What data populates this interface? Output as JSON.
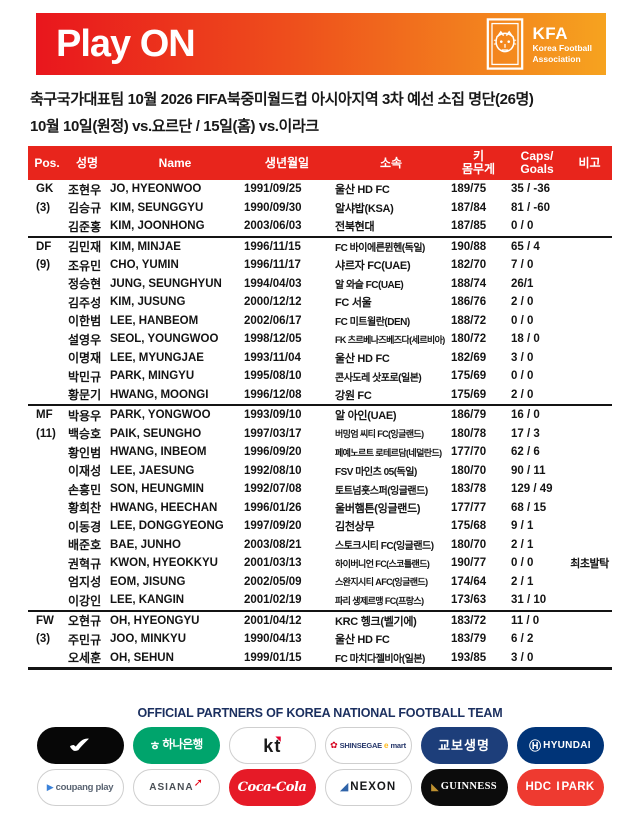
{
  "colors": {
    "banner_gradient_left": "#e9161d",
    "banner_gradient_right": "#f6a31f",
    "table_header_red": "#e8251c",
    "footer_navy": "#1b2f5f"
  },
  "banner": {
    "title": "Play ON",
    "kfa": {
      "acronym": "KFA",
      "org_line1": "Korea Football",
      "org_line2": "Association"
    }
  },
  "intro": {
    "line1": "축구국가대표팀 10월 2026 FIFA북중미월드컵 아시아지역 3차 예선 소집 명단(26명)",
    "line2": "10월 10일(원정) vs.요르단 / 15일(홈) vs.이라크"
  },
  "table": {
    "headers": {
      "pos": "Pos.",
      "kor": "성명",
      "name": "Name",
      "birth": "생년월일",
      "club": "소속",
      "hw1": "키",
      "hw2": "몸무게",
      "caps1": "Caps/",
      "caps2": "Goals",
      "remark": "비고"
    },
    "sections": [
      {
        "pos": "GK",
        "count": "(3)",
        "players": [
          {
            "kor": "조현우",
            "name": "JO, HYEONWOO",
            "birth": "1991/09/25",
            "club": "울산 HD FC",
            "hw": "189/75",
            "caps": "35 / -36",
            "remark": ""
          },
          {
            "kor": "김승규",
            "name": "KIM, SEUNGGYU",
            "birth": "1990/09/30",
            "club": "알샤밥(KSA)",
            "hw": "187/84",
            "caps": "81 / -60",
            "remark": ""
          },
          {
            "kor": "김준홍",
            "name": "KIM, JOONHONG",
            "birth": "2003/06/03",
            "club": "전북현대",
            "hw": "187/85",
            "caps": "0 / 0",
            "remark": ""
          }
        ]
      },
      {
        "pos": "DF",
        "count": "(9)",
        "players": [
          {
            "kor": "김민재",
            "name": "KIM, MINJAE",
            "birth": "1996/11/15",
            "club": "FC 바이에른뮌헨(독일)",
            "hw": "190/88",
            "caps": "65 / 4",
            "remark": ""
          },
          {
            "kor": "조유민",
            "name": "CHO, YUMIN",
            "birth": "1996/11/17",
            "club": "샤르자 FC(UAE)",
            "hw": "182/70",
            "caps": "7 / 0",
            "remark": ""
          },
          {
            "kor": "정승현",
            "name": "JUNG, SEUNGHYUN",
            "birth": "1994/04/03",
            "club": "알 와슬 FC(UAE)",
            "hw": "188/74",
            "caps": "26/1",
            "remark": ""
          },
          {
            "kor": "김주성",
            "name": "KIM, JUSUNG",
            "birth": "2000/12/12",
            "club": "FC 서울",
            "hw": "186/76",
            "caps": "2 / 0",
            "remark": ""
          },
          {
            "kor": "이한범",
            "name": "LEE, HANBEOM",
            "birth": "2002/06/17",
            "club": "FC 미트윌란(DEN)",
            "hw": "188/72",
            "caps": "0 / 0",
            "remark": ""
          },
          {
            "kor": "설영우",
            "name": "SEOL, YOUNGWOO",
            "birth": "1998/12/05",
            "club": "FK 츠르베나즈베즈다(세르비아)",
            "hw": "180/72",
            "caps": "18 / 0",
            "remark": ""
          },
          {
            "kor": "이명재",
            "name": "LEE, MYUNGJAE",
            "birth": "1993/11/04",
            "club": "울산 HD FC",
            "hw": "182/69",
            "caps": "3 / 0",
            "remark": ""
          },
          {
            "kor": "박민규",
            "name": "PARK, MINGYU",
            "birth": "1995/08/10",
            "club": "콘사도레 삿포로(일본)",
            "hw": "175/69",
            "caps": "0 / 0",
            "remark": ""
          },
          {
            "kor": "황문기",
            "name": "HWANG, MOONGI",
            "birth": "1996/12/08",
            "club": "강원 FC",
            "hw": "175/69",
            "caps": "2 / 0",
            "remark": ""
          }
        ]
      },
      {
        "pos": "MF",
        "count": "(11)",
        "players": [
          {
            "kor": "박용우",
            "name": "PARK, YONGWOO",
            "birth": "1993/09/10",
            "club": "알 아인(UAE)",
            "hw": "186/79",
            "caps": "16 / 0",
            "remark": ""
          },
          {
            "kor": "백승호",
            "name": "PAIK, SEUNGHO",
            "birth": "1997/03/17",
            "club": "버밍엄 씨티 FC(잉글랜드)",
            "hw": "180/78",
            "caps": "17 / 3",
            "remark": ""
          },
          {
            "kor": "황인범",
            "name": "HWANG, INBEOM",
            "birth": "1996/09/20",
            "club": "페예노르트 로테르담(네덜란드)",
            "hw": "177/70",
            "caps": "62 / 6",
            "remark": ""
          },
          {
            "kor": "이재성",
            "name": "LEE, JAESUNG",
            "birth": "1992/08/10",
            "club": "FSV 마인츠 05(독일)",
            "hw": "180/70",
            "caps": "90 / 11",
            "remark": ""
          },
          {
            "kor": "손흥민",
            "name": "SON, HEUNGMIN",
            "birth": "1992/07/08",
            "club": "토트넘홋스퍼(잉글랜드)",
            "hw": "183/78",
            "caps": "129 / 49",
            "remark": ""
          },
          {
            "kor": "황희찬",
            "name": "HWANG, HEECHAN",
            "birth": "1996/01/26",
            "club": "울버햄튼(잉글랜드)",
            "hw": "177/77",
            "caps": "68 / 15",
            "remark": ""
          },
          {
            "kor": "이동경",
            "name": "LEE, DONGGYEONG",
            "birth": "1997/09/20",
            "club": "김천상무",
            "hw": "175/68",
            "caps": "9 / 1",
            "remark": ""
          },
          {
            "kor": "배준호",
            "name": "BAE, JUNHO",
            "birth": "2003/08/21",
            "club": "스토크시티 FC(잉글랜드)",
            "hw": "180/70",
            "caps": "2 / 1",
            "remark": ""
          },
          {
            "kor": "권혁규",
            "name": "KWON, HYEOKKYU",
            "birth": "2001/03/13",
            "club": "하이버니언 FC(스코틀랜드)",
            "hw": "190/77",
            "caps": "0 / 0",
            "remark": "최초발탁"
          },
          {
            "kor": "엄지성",
            "name": "EOM, JISUNG",
            "birth": "2002/05/09",
            "club": "스완지시티 AFC(잉글랜드)",
            "hw": "174/64",
            "caps": "2 / 1",
            "remark": ""
          },
          {
            "kor": "이강인",
            "name": "LEE, KANGIN",
            "birth": "2001/02/19",
            "club": "파리 생제르맹 FC(프랑스)",
            "hw": "173/63",
            "caps": "31 / 10",
            "remark": ""
          }
        ]
      },
      {
        "pos": "FW",
        "count": "(3)",
        "players": [
          {
            "kor": "오현규",
            "name": "OH, HYEONGYU",
            "birth": "2001/04/12",
            "club": "KRC 헹크(벨기에)",
            "hw": "183/72",
            "caps": "11 / 0",
            "remark": ""
          },
          {
            "kor": "주민규",
            "name": "JOO, MINKYU",
            "birth": "1990/04/13",
            "club": "울산 HD FC",
            "hw": "183/79",
            "caps": "6 / 2",
            "remark": ""
          },
          {
            "kor": "오세훈",
            "name": "OH, SEHUN",
            "birth": "1999/01/15",
            "club": "FC 마치다젤비아(일본)",
            "hw": "193/85",
            "caps": "3 / 0",
            "remark": ""
          }
        ]
      }
    ]
  },
  "footer": {
    "title": "OFFICIAL PARTNERS OF KOREA NATIONAL FOOTBALL TEAM",
    "partners": [
      {
        "name": "nike",
        "bg": "#070707",
        "border": false,
        "parts": [
          {
            "text": "✔",
            "color": "#ffffff",
            "cls": "swoosh",
            "dn": "nike-swoosh-icon"
          }
        ]
      },
      {
        "name": "hana-bank",
        "bg": "#00a46c",
        "border": false,
        "parts": [
          {
            "text": "ㅎ",
            "color": "#ffffff",
            "cls": "hana-sym",
            "dn": "hana-symbol-icon"
          },
          {
            "text": "하나은행",
            "color": "#ffffff",
            "cls": "hana-txt",
            "dn": "hana-bank-label"
          }
        ]
      },
      {
        "name": "kt",
        "bg": "#ffffff",
        "border": true,
        "parts": [
          {
            "text": "k",
            "color": "#1a1a1a",
            "cls": "kt-txt",
            "dn": "kt-label-k"
          },
          {
            "text": "t",
            "color": "#1a1a1a",
            "cls": "kt-txt",
            "dn": "kt-label-t"
          },
          {
            "text": "◥",
            "color": "#e4002b",
            "cls": "kt-mark",
            "dn": "kt-red-mark-icon"
          }
        ]
      },
      {
        "name": "shinsegae-emart",
        "bg": "#ffffff",
        "border": true,
        "parts": [
          {
            "text": "✿",
            "color": "#d6001c",
            "cls": "sg-flower",
            "dn": "shinsegae-flower-icon"
          },
          {
            "text": "SHINSEGAE",
            "color": "#27386b",
            "cls": "sg-txt",
            "dn": "shinsegae-label"
          },
          {
            "text": "e",
            "color": "#ffb919",
            "cls": "sg-e",
            "dn": "emart-e-label"
          },
          {
            "text": "mart",
            "color": "#27386b",
            "cls": "sg-txt",
            "dn": "emart-label"
          }
        ]
      },
      {
        "name": "kyobo-life",
        "bg": "#1d3e7a",
        "border": false,
        "parts": [
          {
            "text": "교보생명",
            "color": "#ffffff",
            "cls": "kyobo-txt",
            "dn": "kyobo-life-label"
          }
        ]
      },
      {
        "name": "hyundai",
        "bg": "#003478",
        "border": false,
        "parts": [
          {
            "text": "Ⓗ",
            "color": "#ffffff",
            "cls": "hyundai-h",
            "dn": "hyundai-h-icon"
          },
          {
            "text": "HYUNDAI",
            "color": "#ffffff",
            "cls": "hyundai-txt",
            "dn": "hyundai-label"
          }
        ]
      },
      {
        "name": "coupang-play",
        "bg": "#ffffff",
        "border": true,
        "parts": [
          {
            "text": "▶",
            "color": "#3b82d9",
            "cls": "coupang-tri",
            "dn": "coupang-play-triangle-icon"
          },
          {
            "text": "coupang play",
            "color": "#5a6472",
            "cls": "coupang-txt",
            "dn": "coupang-play-label"
          }
        ]
      },
      {
        "name": "asiana",
        "bg": "#ffffff",
        "border": true,
        "parts": [
          {
            "text": "ASIANA",
            "color": "#4a4f55",
            "cls": "asiana-txt",
            "dn": "asiana-label"
          },
          {
            "text": "➚",
            "color": "#e60012",
            "cls": "asiana-arrow",
            "dn": "asiana-wing-icon"
          }
        ]
      },
      {
        "name": "coca-cola",
        "bg": "#e61a27",
        "border": false,
        "parts": [
          {
            "text": "Coca-Cola",
            "color": "#ffffff",
            "cls": "coke-script",
            "dn": "coca-cola-label"
          }
        ]
      },
      {
        "name": "nexon",
        "bg": "#ffffff",
        "border": true,
        "parts": [
          {
            "text": "◢",
            "color": "#2f63a8",
            "cls": "nexon-cube",
            "dn": "nexon-cube-icon"
          },
          {
            "text": "NEXON",
            "color": "#17181a",
            "cls": "nexon-txt",
            "dn": "nexon-label"
          }
        ]
      },
      {
        "name": "guinness",
        "bg": "#0c0c0c",
        "border": false,
        "parts": [
          {
            "text": "◣",
            "color": "#bf9130",
            "cls": "guinness-harp",
            "dn": "guinness-harp-icon"
          },
          {
            "text": "GUINNESS",
            "color": "#ffffff",
            "cls": "guinness-txt",
            "dn": "guinness-label"
          }
        ]
      },
      {
        "name": "hdc-ipark",
        "bg": "#ee3a30",
        "border": false,
        "parts": [
          {
            "text": "HDC",
            "color": "#ffffff",
            "cls": "hdc-txt",
            "dn": "hdc-label"
          },
          {
            "text": "I",
            "color": "#ffffff",
            "cls": "hdc-i",
            "dn": "ipark-i-label"
          },
          {
            "text": "PARK",
            "color": "#ffffff",
            "cls": "hdc-txt",
            "dn": "ipark-label"
          }
        ]
      }
    ]
  }
}
